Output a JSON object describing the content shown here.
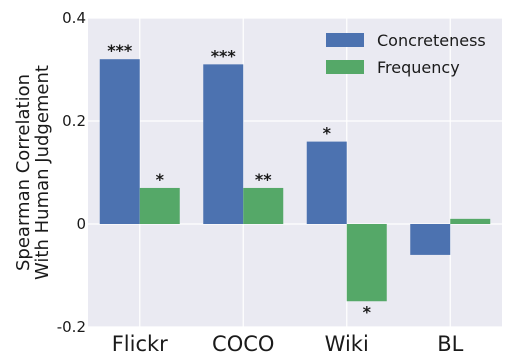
{
  "chart_data": {
    "type": "bar",
    "categories": [
      "Flickr",
      "COCO",
      "Wiki",
      "BL"
    ],
    "series": [
      {
        "name": "Concreteness",
        "color": "#4c72b0",
        "values": [
          0.32,
          0.31,
          0.16,
          -0.06
        ],
        "significance": [
          "***",
          "***",
          "*",
          ""
        ]
      },
      {
        "name": "Frequency",
        "color": "#55a868",
        "values": [
          0.07,
          0.07,
          -0.15,
          0.01
        ],
        "significance": [
          "*",
          "**",
          "*",
          ""
        ]
      }
    ],
    "ylabel_lines": [
      "Spearman Correlation",
      "With Human Judgement"
    ],
    "xlabel": "",
    "title": "",
    "ylim": [
      -0.2,
      0.4
    ],
    "yticks": [
      -0.2,
      0,
      0.2,
      0.4
    ],
    "ytick_labels": [
      "-0.2",
      "0",
      "0.2",
      "0.4"
    ],
    "grid": true,
    "background": "#eaeaf2",
    "legend": "top-right"
  }
}
